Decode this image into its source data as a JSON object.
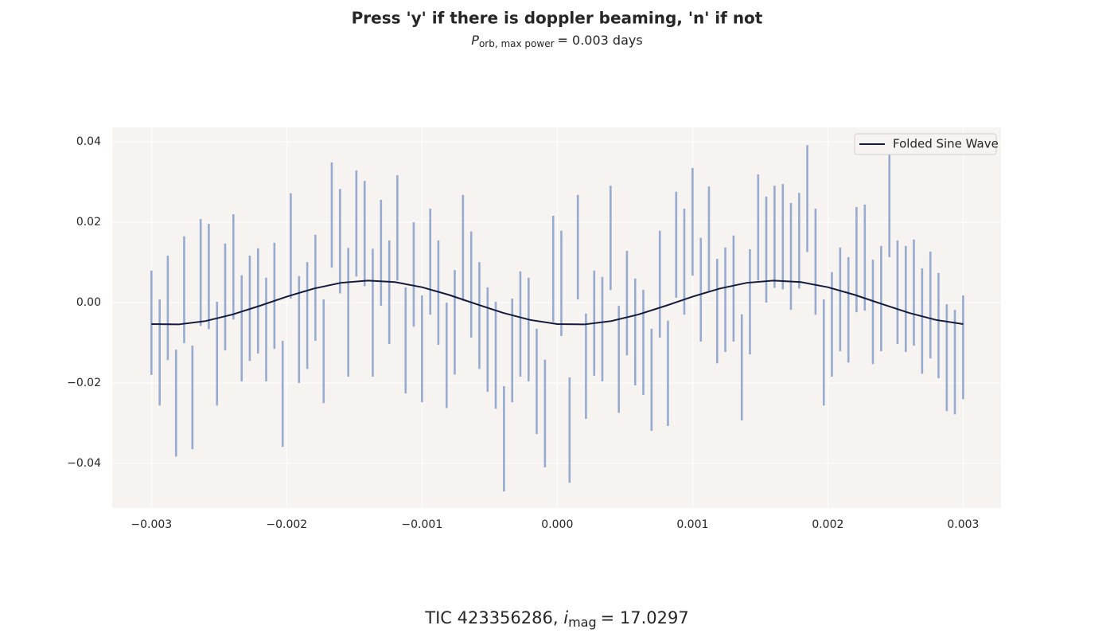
{
  "chart_data": {
    "type": "errorbar",
    "title": "Press 'y' if there is doppler beaming, 'n' if not",
    "subtitle": [
      "P",
      "orb, max power",
      "= 0.003 days"
    ],
    "xlabel": [
      "TIC 423356286, ",
      "i",
      "mag",
      "= 17.0297"
    ],
    "xlim": [
      -0.00329,
      0.00328
    ],
    "ylim": [
      -0.0511,
      0.0436
    ],
    "xticks": [
      {
        "value": -0.003,
        "label": "−0.003"
      },
      {
        "value": -0.002,
        "label": "−0.002"
      },
      {
        "value": -0.001,
        "label": "−0.001"
      },
      {
        "value": 0,
        "label": "0.000"
      },
      0.001,
      0.002,
      0.003
    ],
    "yticks": [
      {
        "value": -0.04,
        "label": "−0.04"
      },
      {
        "value": -0.02,
        "label": "−0.02"
      },
      {
        "value": 0,
        "label": "0.00"
      },
      0.02,
      0.04
    ],
    "grid": true,
    "background": "#f7f3f1",
    "legend": "upper right",
    "series": [
      {
        "color": "#97abd0",
        "x": [
          -0.003,
          -0.002939,
          -0.002879,
          -0.002818,
          -0.002758,
          -0.002697,
          -0.002636,
          -0.002576,
          -0.002515,
          -0.002455,
          -0.002394,
          -0.002333,
          -0.002273,
          -0.002212,
          -0.002152,
          -0.002091,
          -0.00203,
          -0.00197,
          -0.001909,
          -0.001848,
          -0.001788,
          -0.001727,
          -0.001667,
          -0.001606,
          -0.001545,
          -0.001485,
          -0.001424,
          -0.001364,
          -0.001303,
          -0.001242,
          -0.001182,
          -0.001121,
          -0.001061,
          -0.001,
          -0.000939,
          -0.000879,
          -0.000818,
          -0.000758,
          -0.000697,
          -0.000636,
          -0.000576,
          -0.000515,
          -0.000455,
          -0.000394,
          -0.000333,
          -0.000273,
          -0.000212,
          -0.000152,
          -9.1e-05,
          -3e-05,
          3e-05,
          9.1e-05,
          0.000152,
          0.000212,
          0.000273,
          0.000333,
          0.000394,
          0.000455,
          0.000515,
          0.000576,
          0.000636,
          0.000697,
          0.000758,
          0.000818,
          0.000879,
          0.000939,
          0.001,
          0.001061,
          0.001121,
          0.001182,
          0.001242,
          0.001303,
          0.001364,
          0.001424,
          0.001485,
          0.001545,
          0.001606,
          0.001667,
          0.001727,
          0.001788,
          0.001848,
          0.001909,
          0.00197,
          0.00203,
          0.002091,
          0.002152,
          0.002212,
          0.002273,
          0.002333,
          0.002394,
          0.002455,
          0.002515,
          0.002576,
          0.002636,
          0.002697,
          0.002758,
          0.002818,
          0.002879,
          0.002939,
          0.003
        ],
        "values": [
          -0.005,
          -0.0124,
          -0.0013,
          -0.025,
          0.0032,
          -0.0236,
          0.0075,
          0.0065,
          -0.0127,
          0.0014,
          0.0089,
          -0.0064,
          -0.0014,
          0.0004,
          -0.0067,
          0.0017,
          -0.0227,
          0.0141,
          -0.0067,
          -0.0032,
          0.0037,
          -0.0121,
          0.0218,
          0.0153,
          -0.0024,
          0.0197,
          0.0172,
          -0.0025,
          0.0124,
          0.0026,
          0.0186,
          -0.0094,
          0.007,
          -0.0115,
          0.0102,
          0.0025,
          -0.0131,
          -0.0049,
          0.0136,
          0.0045,
          -0.0032,
          -0.0092,
          -0.0131,
          -0.0339,
          -0.0119,
          -0.0053,
          -0.0067,
          -0.0196,
          -0.0276,
          0.0084,
          0.0048,
          -0.0317,
          0.0138,
          -0.0158,
          -0.0051,
          -0.0066,
          0.0161,
          -0.0141,
          -0.0001,
          -0.0073,
          -0.0099,
          -0.0192,
          0.0046,
          -0.0176,
          0.0144,
          0.0102,
          0.0201,
          0.0032,
          0.0157,
          -0.0021,
          0.0007,
          0.0035,
          -0.0161,
          0.0002,
          0.0187,
          0.0132,
          0.0164,
          0.0164,
          0.0115,
          0.0154,
          0.0259,
          0.0102,
          -0.0124,
          -0.0054,
          0.0008,
          -0.0018,
          0.0107,
          0.0112,
          -0.0023,
          0.001,
          0.0245,
          0.0026,
          0.0009,
          0.0025,
          -0.0046,
          -0.0006,
          -0.0057,
          -0.0137,
          -0.0148,
          -0.0111
        ],
        "errors": [
          0.013,
          0.0132,
          0.013,
          0.0133,
          0.0133,
          0.0129,
          0.0133,
          0.0131,
          0.0129,
          0.0133,
          0.0131,
          0.0132,
          0.0131,
          0.0131,
          0.0129,
          0.0132,
          0.0132,
          0.0131,
          0.0133,
          0.0133,
          0.0132,
          0.0129,
          0.0131,
          0.013,
          0.016,
          0.0132,
          0.0131,
          0.0159,
          0.0132,
          0.0129,
          0.0131,
          0.0132,
          0.013,
          0.0133,
          0.0132,
          0.013,
          0.0131,
          0.013,
          0.0132,
          0.0132,
          0.0133,
          0.013,
          0.0133,
          0.0131,
          0.0129,
          0.0131,
          0.0129,
          0.0131,
          0.0134,
          0.0132,
          0.0131,
          0.0131,
          0.013,
          0.0131,
          0.0131,
          0.013,
          0.013,
          0.0133,
          0.013,
          0.0133,
          0.0131,
          0.0127,
          0.0133,
          0.0131,
          0.0132,
          0.0132,
          0.0134,
          0.0129,
          0.0132,
          0.013,
          0.013,
          0.0132,
          0.0132,
          0.0131,
          0.0132,
          0.0132,
          0.0127,
          0.0131,
          0.0133,
          0.0119,
          0.0133,
          0.0132,
          0.0132,
          0.013,
          0.0129,
          0.0131,
          0.0131,
          0.0132,
          0.013,
          0.0131,
          0.0132,
          0.0129,
          0.0132,
          0.0132,
          0.0131,
          0.0133,
          0.0131,
          0.0133,
          0.013,
          0.0129
        ]
      },
      {
        "name": "Folded Sine Wave",
        "color": "#131a3a",
        "x": [
          -0.003,
          -0.0028,
          -0.0026,
          -0.0024,
          -0.0022,
          -0.002,
          -0.0018,
          -0.0016,
          -0.0014,
          -0.0012,
          -0.001,
          -0.0008,
          -0.0006,
          -0.0004,
          -0.0002,
          0,
          0.0002,
          0.0004,
          0.0006,
          0.0008,
          0.001,
          0.0012,
          0.0014,
          0.0016,
          0.0018,
          0.002,
          0.0022,
          0.0024,
          0.0026,
          0.0028,
          0.003
        ],
        "values": [
          -0.00533,
          -0.00542,
          -0.00458,
          -0.00295,
          -0.0008,
          0.00148,
          0.0035,
          0.00493,
          0.00549,
          0.00511,
          0.00384,
          0.00192,
          -0.00035,
          -0.00255,
          -0.00431,
          -0.00533,
          -0.00542,
          -0.00458,
          -0.00295,
          -0.0008,
          0.00148,
          0.0035,
          0.00493,
          0.00549,
          0.00511,
          0.00384,
          0.00192,
          -0.00035,
          -0.00255,
          -0.00431,
          -0.00533
        ]
      }
    ]
  }
}
